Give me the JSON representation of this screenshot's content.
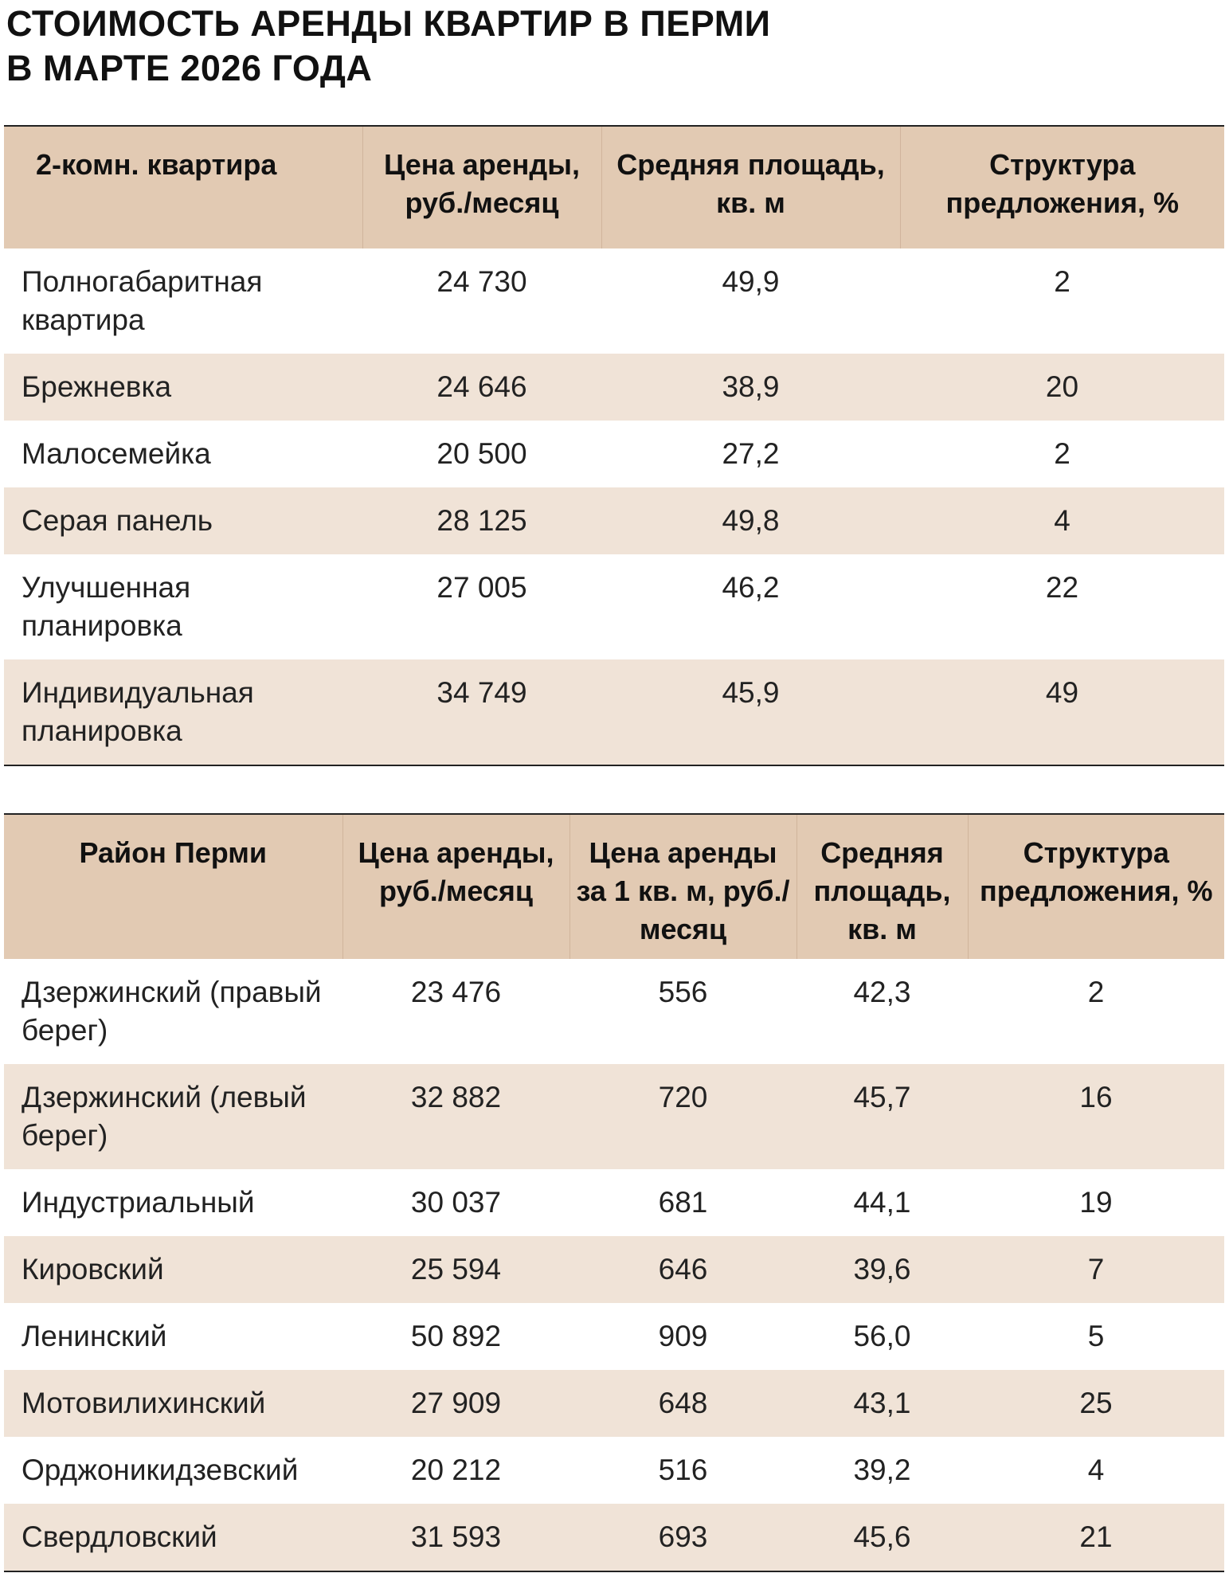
{
  "title": {
    "line1": "СТОИМОСТЬ АРЕНДЫ КВАРТИР В ПЕРМИ",
    "line2": "В МАРТЕ 2026 ГОДА"
  },
  "colors": {
    "header_bg": "#e2cab3",
    "stripe_bg": "#f0e3d7"
  },
  "table1": {
    "headers": [
      "2-комн. квартира",
      "Цена аренды, руб./месяц",
      "Средняя площадь, кв. м",
      "Структура предложения, %"
    ],
    "rows": [
      {
        "name": "Полногабаритная квартира",
        "price": "24 730",
        "area": "49,9",
        "share": "2"
      },
      {
        "name": "Брежневка",
        "price": "24 646",
        "area": "38,9",
        "share": "20"
      },
      {
        "name": "Малосемейка",
        "price": "20 500",
        "area": "27,2",
        "share": "2"
      },
      {
        "name": "Серая панель",
        "price": "28 125",
        "area": "49,8",
        "share": "4"
      },
      {
        "name": "Улучшенная планировка",
        "price": "27 005",
        "area": "46,2",
        "share": "22"
      },
      {
        "name": "Индивидуальная планировка",
        "price": "34 749",
        "area": "45,9",
        "share": "49"
      }
    ]
  },
  "table2": {
    "headers": [
      "Район Перми",
      "Цена аренды, руб./месяц",
      "Цена аренды за 1 кв. м, руб./месяц",
      "Средняя площадь, кв. м",
      "Структура предложения, %"
    ],
    "rows": [
      {
        "name": "Дзержинский (правый берег)",
        "price": "23 476",
        "sqm": "556",
        "area": "42,3",
        "share": "2"
      },
      {
        "name": "Дзержинский (левый берег)",
        "price": "32 882",
        "sqm": "720",
        "area": "45,7",
        "share": "16"
      },
      {
        "name": "Индустриальный",
        "price": "30 037",
        "sqm": "681",
        "area": "44,1",
        "share": "19"
      },
      {
        "name": "Кировский",
        "price": "25 594",
        "sqm": "646",
        "area": "39,6",
        "share": "7"
      },
      {
        "name": "Ленинский",
        "price": "50 892",
        "sqm": "909",
        "area": "56,0",
        "share": "5"
      },
      {
        "name": "Мотовилихинский",
        "price": "27 909",
        "sqm": "648",
        "area": "43,1",
        "share": "25"
      },
      {
        "name": "Орджоникидзевский",
        "price": "20 212",
        "sqm": "516",
        "area": "39,2",
        "share": "4"
      },
      {
        "name": "Свердловский",
        "price": "31 593",
        "sqm": "693",
        "area": "45,6",
        "share": "21"
      }
    ]
  }
}
